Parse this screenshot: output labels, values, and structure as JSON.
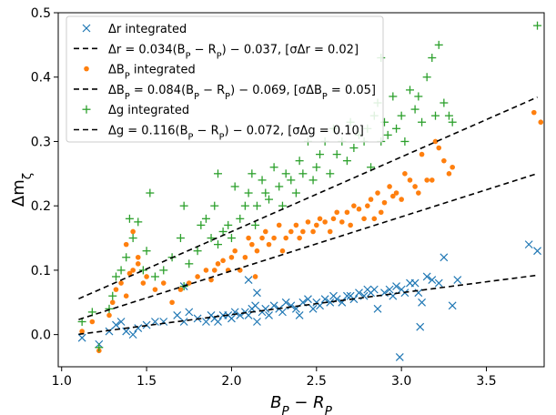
{
  "chart_data": {
    "type": "scatter",
    "xlabel": "B_P − R_P",
    "ylabel": "Δm_ζ",
    "xlim": [
      0.98,
      3.84
    ],
    "ylim": [
      -0.05,
      0.5
    ],
    "xticks": [
      1.0,
      1.5,
      2.0,
      2.5,
      3.0,
      3.5
    ],
    "xtick_labels": [
      "1.0",
      "1.5",
      "2.0",
      "2.5",
      "3.0",
      "3.5"
    ],
    "yticks": [
      0.0,
      0.1,
      0.2,
      0.3,
      0.4,
      0.5
    ],
    "ytick_labels": [
      "0.0",
      "0.1",
      "0.2",
      "0.3",
      "0.4",
      "0.5"
    ],
    "grid": false,
    "legend_position": "top-left",
    "legend": [
      {
        "kind": "marker",
        "marker": "x",
        "color": "#1f77b4",
        "label": "Δr integrated"
      },
      {
        "kind": "line",
        "color": "#000000",
        "label": "Δr = 0.034(B_P − R_P) − 0.037, [σΔr = 0.02]"
      },
      {
        "kind": "marker",
        "marker": "dot",
        "color": "#ff7f0e",
        "label": "ΔB_P integrated"
      },
      {
        "kind": "line",
        "color": "#000000",
        "label": "ΔB_P = 0.084(B_P − R_P) − 0.069, [σΔB_P = 0.05]"
      },
      {
        "kind": "marker",
        "marker": "plus",
        "color": "#2ca02c",
        "label": "Δg integrated"
      },
      {
        "kind": "line",
        "color": "#000000",
        "label": "Δg = 0.116(B_P − R_P) − 0.072, [σΔg = 0.10]"
      }
    ],
    "series": [
      {
        "name": "Δr integrated",
        "marker": "x",
        "color": "#1f77b4",
        "points": [
          [
            1.12,
            -0.005
          ],
          [
            1.22,
            -0.015
          ],
          [
            1.28,
            0.005
          ],
          [
            1.32,
            0.015
          ],
          [
            1.35,
            0.02
          ],
          [
            1.38,
            0.005
          ],
          [
            1.42,
            0.0
          ],
          [
            1.45,
            0.01
          ],
          [
            1.5,
            0.015
          ],
          [
            1.55,
            0.02
          ],
          [
            1.6,
            0.02
          ],
          [
            1.68,
            0.03
          ],
          [
            1.72,
            0.02
          ],
          [
            1.75,
            0.035
          ],
          [
            1.8,
            0.025
          ],
          [
            1.85,
            0.02
          ],
          [
            1.88,
            0.03
          ],
          [
            1.9,
            0.025
          ],
          [
            1.92,
            0.02
          ],
          [
            1.95,
            0.03
          ],
          [
            1.98,
            0.03
          ],
          [
            2.0,
            0.025
          ],
          [
            2.02,
            0.035
          ],
          [
            2.05,
            0.03
          ],
          [
            2.08,
            0.035
          ],
          [
            2.1,
            0.03
          ],
          [
            2.12,
            0.04
          ],
          [
            2.14,
            0.045
          ],
          [
            2.15,
            0.02
          ],
          [
            2.18,
            0.035
          ],
          [
            2.2,
            0.04
          ],
          [
            2.22,
            0.03
          ],
          [
            2.25,
            0.045
          ],
          [
            2.28,
            0.04
          ],
          [
            2.3,
            0.035
          ],
          [
            2.32,
            0.05
          ],
          [
            2.35,
            0.045
          ],
          [
            2.38,
            0.04
          ],
          [
            2.4,
            0.03
          ],
          [
            2.42,
            0.05
          ],
          [
            2.45,
            0.055
          ],
          [
            2.48,
            0.04
          ],
          [
            2.5,
            0.05
          ],
          [
            2.52,
            0.045
          ],
          [
            2.55,
            0.055
          ],
          [
            2.58,
            0.05
          ],
          [
            2.6,
            0.06
          ],
          [
            2.62,
            0.055
          ],
          [
            2.65,
            0.05
          ],
          [
            2.68,
            0.06
          ],
          [
            2.7,
            0.06
          ],
          [
            2.72,
            0.055
          ],
          [
            2.75,
            0.065
          ],
          [
            2.78,
            0.06
          ],
          [
            2.8,
            0.07
          ],
          [
            2.82,
            0.065
          ],
          [
            2.84,
            0.07
          ],
          [
            2.86,
            0.04
          ],
          [
            2.9,
            0.065
          ],
          [
            2.93,
            0.07
          ],
          [
            2.95,
            0.06
          ],
          [
            2.97,
            0.075
          ],
          [
            3.0,
            0.07
          ],
          [
            3.02,
            0.065
          ],
          [
            3.05,
            0.08
          ],
          [
            3.08,
            0.08
          ],
          [
            3.1,
            0.065
          ],
          [
            3.12,
            0.05
          ],
          [
            3.15,
            0.09
          ],
          [
            3.18,
            0.085
          ],
          [
            3.22,
            0.08
          ],
          [
            3.25,
            0.12
          ],
          [
            3.3,
            0.045
          ],
          [
            3.11,
            0.012
          ],
          [
            2.99,
            -0.035
          ],
          [
            3.75,
            0.14
          ],
          [
            3.8,
            0.13
          ],
          [
            3.33,
            0.085
          ],
          [
            2.15,
            0.065
          ],
          [
            1.72,
            0.075
          ],
          [
            2.1,
            0.085
          ]
        ]
      },
      {
        "name": "ΔB_P integrated",
        "marker": "dot",
        "color": "#ff7f0e",
        "points": [
          [
            1.12,
            0.005
          ],
          [
            1.18,
            0.02
          ],
          [
            1.22,
            -0.025
          ],
          [
            1.28,
            0.03
          ],
          [
            1.3,
            0.05
          ],
          [
            1.32,
            0.07
          ],
          [
            1.35,
            0.08
          ],
          [
            1.38,
            0.06
          ],
          [
            1.4,
            0.095
          ],
          [
            1.42,
            0.1
          ],
          [
            1.45,
            0.11
          ],
          [
            1.5,
            0.09
          ],
          [
            1.55,
            0.07
          ],
          [
            1.6,
            0.08
          ],
          [
            1.65,
            0.05
          ],
          [
            1.7,
            0.07
          ],
          [
            1.75,
            0.08
          ],
          [
            1.8,
            0.09
          ],
          [
            1.85,
            0.1
          ],
          [
            1.88,
            0.085
          ],
          [
            1.9,
            0.1
          ],
          [
            1.92,
            0.11
          ],
          [
            1.95,
            0.115
          ],
          [
            1.98,
            0.1
          ],
          [
            2.0,
            0.12
          ],
          [
            2.02,
            0.13
          ],
          [
            2.05,
            0.1
          ],
          [
            2.08,
            0.12
          ],
          [
            2.1,
            0.15
          ],
          [
            2.12,
            0.14
          ],
          [
            2.14,
            0.09
          ],
          [
            2.15,
            0.13
          ],
          [
            2.18,
            0.15
          ],
          [
            2.2,
            0.16
          ],
          [
            2.22,
            0.14
          ],
          [
            2.25,
            0.15
          ],
          [
            2.28,
            0.17
          ],
          [
            2.3,
            0.13
          ],
          [
            2.32,
            0.15
          ],
          [
            2.35,
            0.16
          ],
          [
            2.38,
            0.17
          ],
          [
            2.4,
            0.15
          ],
          [
            2.42,
            0.16
          ],
          [
            2.45,
            0.175
          ],
          [
            2.48,
            0.16
          ],
          [
            2.5,
            0.17
          ],
          [
            2.52,
            0.18
          ],
          [
            2.55,
            0.175
          ],
          [
            2.58,
            0.16
          ],
          [
            2.6,
            0.18
          ],
          [
            2.62,
            0.19
          ],
          [
            2.65,
            0.175
          ],
          [
            2.68,
            0.19
          ],
          [
            2.7,
            0.17
          ],
          [
            2.72,
            0.2
          ],
          [
            2.75,
            0.195
          ],
          [
            2.78,
            0.18
          ],
          [
            2.8,
            0.2
          ],
          [
            2.82,
            0.21
          ],
          [
            2.84,
            0.18
          ],
          [
            2.86,
            0.22
          ],
          [
            2.88,
            0.19
          ],
          [
            2.9,
            0.205
          ],
          [
            2.93,
            0.23
          ],
          [
            2.95,
            0.215
          ],
          [
            2.97,
            0.22
          ],
          [
            3.0,
            0.21
          ],
          [
            3.02,
            0.25
          ],
          [
            3.05,
            0.24
          ],
          [
            3.08,
            0.23
          ],
          [
            3.1,
            0.22
          ],
          [
            3.12,
            0.28
          ],
          [
            3.15,
            0.24
          ],
          [
            3.18,
            0.24
          ],
          [
            3.2,
            0.3
          ],
          [
            3.22,
            0.29
          ],
          [
            3.25,
            0.27
          ],
          [
            3.28,
            0.25
          ],
          [
            3.3,
            0.26
          ],
          [
            3.78,
            0.345
          ],
          [
            3.82,
            0.33
          ],
          [
            1.38,
            0.14
          ],
          [
            1.42,
            0.16
          ],
          [
            1.45,
            0.12
          ],
          [
            1.48,
            0.08
          ]
        ]
      },
      {
        "name": "Δg integrated",
        "marker": "plus",
        "color": "#2ca02c",
        "points": [
          [
            1.12,
            0.02
          ],
          [
            1.18,
            0.035
          ],
          [
            1.22,
            -0.02
          ],
          [
            1.28,
            0.04
          ],
          [
            1.3,
            0.06
          ],
          [
            1.32,
            0.09
          ],
          [
            1.35,
            0.1
          ],
          [
            1.38,
            0.12
          ],
          [
            1.4,
            0.18
          ],
          [
            1.42,
            0.15
          ],
          [
            1.45,
            0.175
          ],
          [
            1.48,
            0.1
          ],
          [
            1.5,
            0.13
          ],
          [
            1.52,
            0.22
          ],
          [
            1.55,
            0.09
          ],
          [
            1.6,
            0.1
          ],
          [
            1.65,
            0.12
          ],
          [
            1.7,
            0.15
          ],
          [
            1.72,
            0.2
          ],
          [
            1.75,
            0.11
          ],
          [
            1.8,
            0.13
          ],
          [
            1.82,
            0.17
          ],
          [
            1.85,
            0.18
          ],
          [
            1.88,
            0.15
          ],
          [
            1.9,
            0.2
          ],
          [
            1.92,
            0.14
          ],
          [
            1.95,
            0.16
          ],
          [
            1.98,
            0.17
          ],
          [
            2.0,
            0.15
          ],
          [
            2.02,
            0.23
          ],
          [
            2.05,
            0.18
          ],
          [
            2.08,
            0.2
          ],
          [
            2.1,
            0.22
          ],
          [
            2.12,
            0.25
          ],
          [
            2.14,
            0.17
          ],
          [
            2.15,
            0.2
          ],
          [
            2.18,
            0.24
          ],
          [
            2.2,
            0.22
          ],
          [
            2.22,
            0.21
          ],
          [
            2.25,
            0.26
          ],
          [
            2.28,
            0.23
          ],
          [
            2.3,
            0.2
          ],
          [
            2.32,
            0.25
          ],
          [
            2.35,
            0.24
          ],
          [
            2.38,
            0.22
          ],
          [
            2.4,
            0.27
          ],
          [
            2.42,
            0.25
          ],
          [
            2.45,
            0.3
          ],
          [
            2.48,
            0.24
          ],
          [
            2.5,
            0.26
          ],
          [
            2.52,
            0.28
          ],
          [
            2.55,
            0.3
          ],
          [
            2.58,
            0.25
          ],
          [
            2.6,
            0.32
          ],
          [
            2.62,
            0.28
          ],
          [
            2.65,
            0.3
          ],
          [
            2.68,
            0.27
          ],
          [
            2.7,
            0.33
          ],
          [
            2.72,
            0.29
          ],
          [
            2.75,
            0.31
          ],
          [
            2.78,
            0.3
          ],
          [
            2.8,
            0.32
          ],
          [
            2.82,
            0.26
          ],
          [
            2.84,
            0.34
          ],
          [
            2.86,
            0.36
          ],
          [
            2.88,
            0.3
          ],
          [
            2.9,
            0.33
          ],
          [
            2.92,
            0.31
          ],
          [
            2.95,
            0.37
          ],
          [
            2.97,
            0.32
          ],
          [
            3.0,
            0.34
          ],
          [
            3.02,
            0.3
          ],
          [
            3.05,
            0.38
          ],
          [
            3.08,
            0.35
          ],
          [
            3.1,
            0.37
          ],
          [
            3.12,
            0.33
          ],
          [
            3.15,
            0.4
          ],
          [
            3.18,
            0.43
          ],
          [
            3.2,
            0.34
          ],
          [
            3.22,
            0.45
          ],
          [
            3.25,
            0.36
          ],
          [
            3.28,
            0.34
          ],
          [
            3.3,
            0.33
          ],
          [
            3.8,
            0.48
          ],
          [
            2.88,
            0.43
          ],
          [
            1.92,
            0.25
          ],
          [
            1.72,
            0.075
          ]
        ]
      }
    ],
    "fit_lines": [
      {
        "name": "Δr fit",
        "slope": 0.034,
        "intercept": -0.037,
        "x_range": [
          1.1,
          3.8
        ],
        "color": "#000000",
        "style": "dashed"
      },
      {
        "name": "ΔB_P fit",
        "slope": 0.084,
        "intercept": -0.069,
        "x_range": [
          1.1,
          3.8
        ],
        "color": "#000000",
        "style": "dashed"
      },
      {
        "name": "Δg fit",
        "slope": 0.116,
        "intercept": -0.072,
        "x_range": [
          1.1,
          3.8
        ],
        "color": "#000000",
        "style": "dashed"
      }
    ]
  }
}
